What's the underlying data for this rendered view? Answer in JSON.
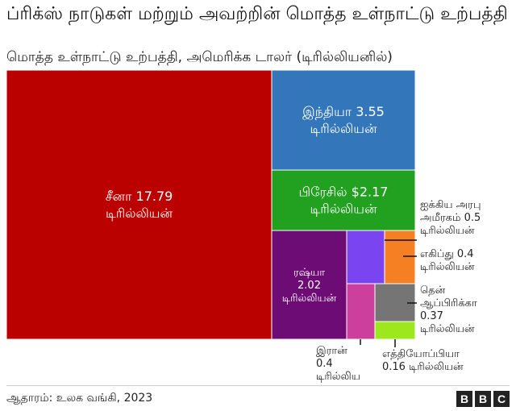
{
  "title": "ப்ரிக்ஸ் நாடுகள் மற்றும் அவற்றின் மொத்த உள்நாட்டு உற்பத்தி",
  "subtitle": "மொத்த உள்நாட்டு உற்பத்தி, அமெரிக்க டாலர் (டிரில்லியனில்)",
  "source": "ஆதாரம்: உலக வங்கி, 2023",
  "logo_letters": [
    "B",
    "B",
    "C"
  ],
  "chart_data": {
    "type": "treemap",
    "title": "ப்ரிக்ஸ் நாடுகள் மற்றும் அவற்றின் மொத்த உள்நாட்டு உற்பத்தி",
    "subtitle": "மொத்த உள்நாட்டு உற்பத்தி, அமெரிக்க டாலர் (டிரில்லியனில்)",
    "unit": "டிரில்லியன்",
    "items": [
      {
        "id": "china",
        "label_lines": [
          "சீனா 17.79",
          "டிரில்லியன்"
        ],
        "value": 17.79,
        "color": "#bb0000"
      },
      {
        "id": "india",
        "label_lines": [
          "இந்தியா 3.55",
          "டிரில்லியன்"
        ],
        "value": 3.55,
        "color": "#3476ba"
      },
      {
        "id": "brazil",
        "label_lines": [
          "பிரேசில் $2.17",
          "டிரில்லியன்"
        ],
        "value": 2.17,
        "color": "#21a11f"
      },
      {
        "id": "russia",
        "label_lines": [
          "ரஷ்யா",
          "2.02",
          "டிரில்லியன்"
        ],
        "value": 2.02,
        "color": "#6c0c74"
      },
      {
        "id": "uae",
        "label_lines": [
          "ஐக்கிய அரபு",
          "அமீரகம்  0.5",
          "டிரில்லியன்"
        ],
        "value": 0.5,
        "color": "#7a45f0"
      },
      {
        "id": "egypt",
        "label_lines": [
          "எகிப்து 0.4",
          "டிரில்லியன்"
        ],
        "value": 0.4,
        "color": "#f58023"
      },
      {
        "id": "iran",
        "label_lines": [
          "இரான்",
          "0.4",
          "டிரில்லிய"
        ],
        "value": 0.4,
        "color": "#cc3f9c"
      },
      {
        "id": "south-africa",
        "label_lines": [
          "தென்",
          "ஆப்பிரிக்கா",
          "0.37",
          "டிரில்லியன்"
        ],
        "value": 0.37,
        "color": "#757575"
      },
      {
        "id": "ethiopia",
        "label_lines": [
          "எத்தியோப்பியா",
          "0.16 டிரில்லியன்"
        ],
        "value": 0.16,
        "color": "#9ce81c"
      }
    ]
  }
}
